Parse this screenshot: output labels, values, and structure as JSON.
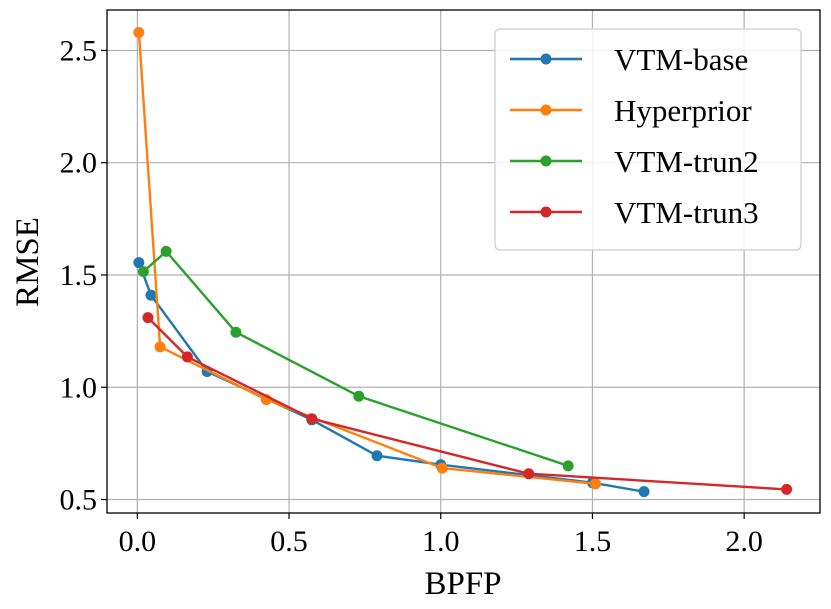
{
  "chart_data": {
    "type": "line",
    "title": "",
    "xlabel": "BPFP",
    "ylabel": "RMSE",
    "xlim": [
      -0.1,
      2.25
    ],
    "ylim": [
      0.44,
      2.68
    ],
    "xticks": [
      0.0,
      0.5,
      1.0,
      1.5,
      2.0
    ],
    "xtick_labels": [
      "0.0",
      "0.5",
      "1.0",
      "1.5",
      "2.0"
    ],
    "yticks": [
      0.5,
      1.0,
      1.5,
      2.0,
      2.5
    ],
    "ytick_labels": [
      "0.5",
      "1.0",
      "1.5",
      "2.0",
      "2.5"
    ],
    "grid": true,
    "legend_position": "top-right",
    "series": [
      {
        "name": "VTM-base",
        "color": "#1f77b4",
        "x": [
          0.005,
          0.045,
          0.23,
          0.575,
          0.79,
          1.0,
          1.5,
          1.67
        ],
        "y": [
          1.555,
          1.41,
          1.07,
          0.855,
          0.695,
          0.655,
          0.575,
          0.535
        ]
      },
      {
        "name": "Hyperprior",
        "color": "#ff7f0e",
        "x": [
          0.005,
          0.075,
          0.425,
          1.005,
          1.51
        ],
        "y": [
          2.58,
          1.18,
          0.945,
          0.64,
          0.57
        ]
      },
      {
        "name": "VTM-trun2",
        "color": "#2ca02c",
        "x": [
          0.02,
          0.095,
          0.325,
          0.73,
          1.42
        ],
        "y": [
          1.515,
          1.605,
          1.245,
          0.96,
          0.65
        ]
      },
      {
        "name": "VTM-trun3",
        "color": "#d62728",
        "x": [
          0.035,
          0.165,
          0.575,
          1.29,
          2.14
        ],
        "y": [
          1.31,
          1.135,
          0.86,
          0.615,
          0.545
        ]
      }
    ]
  }
}
